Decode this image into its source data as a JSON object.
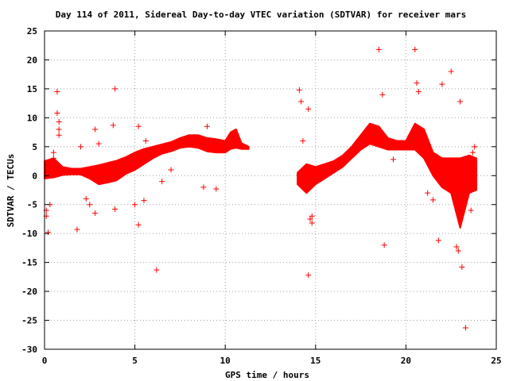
{
  "chart_data": {
    "type": "scatter",
    "title": "Day 114 of 2011, Sidereal Day-to-day VTEC variation (SDTVAR) for receiver mars",
    "xlabel": "GPS time / hours",
    "ylabel": "SDTVAR / TECUs",
    "xlim": [
      0,
      25
    ],
    "ylim": [
      -30,
      25
    ],
    "xticks": [
      0,
      5,
      10,
      15,
      20,
      25
    ],
    "yticks": [
      -30,
      -25,
      -20,
      -15,
      -10,
      -5,
      0,
      5,
      10,
      15,
      20,
      25
    ],
    "grid": true,
    "color": "#ff0000",
    "marker": "plus",
    "density_bands": [
      {
        "x": [
          0,
          0.5,
          1,
          1.5,
          2,
          2.5,
          3,
          3.5,
          4,
          4.5,
          5,
          5.5,
          6,
          6.5,
          7,
          7.5,
          8,
          8.5,
          9,
          9.5,
          10,
          10.3,
          10.6,
          10.9,
          11.3
        ],
        "upper": [
          2.5,
          3,
          1.5,
          1.2,
          1.2,
          1.5,
          1.8,
          2.2,
          2.6,
          3.2,
          4.0,
          4.6,
          5.0,
          5.4,
          5.8,
          6.5,
          7.0,
          7.0,
          6.5,
          6.3,
          6.0,
          7.5,
          8.0,
          5.6,
          5.0
        ],
        "lower": [
          -0.5,
          -0.3,
          0.1,
          0.2,
          0.2,
          -0.5,
          -1.5,
          -1.2,
          -0.8,
          0.3,
          1.0,
          2.0,
          3.0,
          3.8,
          4.2,
          4.8,
          5.0,
          4.8,
          4.2,
          4.0,
          4.0,
          4.6,
          4.8,
          4.6,
          4.6
        ]
      },
      {
        "x": [
          14.0,
          14.5,
          15.0,
          15.5,
          16.0,
          16.5,
          17.0,
          17.5,
          18.0,
          18.5,
          19.0,
          19.5,
          20.0,
          20.5,
          21.0,
          21.5,
          22.0,
          22.5,
          23.0,
          23.5,
          23.9
        ],
        "upper": [
          0.5,
          2.0,
          1.5,
          2.0,
          2.5,
          3.5,
          5.0,
          7.0,
          9.0,
          8.5,
          6.5,
          6.0,
          6.0,
          9.0,
          8.0,
          4.0,
          3.0,
          3.0,
          3.0,
          3.5,
          3.0
        ],
        "lower": [
          -1.5,
          -3.0,
          -1.5,
          -0.5,
          0.5,
          1.5,
          3.0,
          4.5,
          5.5,
          5.0,
          4.5,
          4.5,
          4.5,
          4.5,
          3.0,
          0.0,
          -2.0,
          -3.0,
          -9.0,
          -3.0,
          -2.5
        ]
      }
    ],
    "outliers": {
      "x": [
        0.1,
        0.1,
        0.2,
        0.3,
        0.5,
        0.5,
        0.7,
        0.7,
        0.8,
        0.8,
        0.8,
        1.8,
        2.0,
        2.3,
        2.5,
        2.8,
        2.8,
        3.0,
        3.8,
        3.9,
        3.9,
        5.0,
        5.2,
        5.2,
        5.5,
        5.6,
        6.2,
        6.5,
        7.0,
        8.8,
        9.0,
        9.5,
        14.1,
        14.2,
        14.2,
        14.3,
        14.6,
        14.6,
        14.7,
        14.8,
        14.8,
        18.5,
        18.7,
        18.8,
        19.3,
        20.5,
        20.6,
        20.7,
        21.2,
        21.5,
        21.8,
        22.0,
        22.5,
        22.8,
        22.9,
        23.0,
        23.1,
        23.3,
        23.6,
        23.7,
        23.8
      ],
      "y": [
        -6.0,
        -7.0,
        -9.8,
        -5.0,
        4.0,
        3.0,
        14.5,
        10.8,
        9.3,
        8.0,
        7.0,
        -9.3,
        5.0,
        -4.0,
        -5.0,
        -6.5,
        8.0,
        5.5,
        8.7,
        15.0,
        -5.8,
        -5.0,
        8.5,
        -8.5,
        -4.3,
        6.0,
        -16.3,
        -1.0,
        1.0,
        -2.0,
        8.5,
        -2.3,
        14.8,
        12.8,
        -0.5,
        6.0,
        11.5,
        -17.2,
        -7.5,
        -7.0,
        -8.2,
        21.8,
        14.0,
        -12.0,
        2.8,
        21.8,
        16.0,
        14.5,
        -3.0,
        -4.2,
        -11.2,
        15.8,
        18.0,
        -12.3,
        -13.0,
        12.8,
        -15.8,
        -26.3,
        -6.0,
        4.0,
        5.0
      ]
    }
  }
}
